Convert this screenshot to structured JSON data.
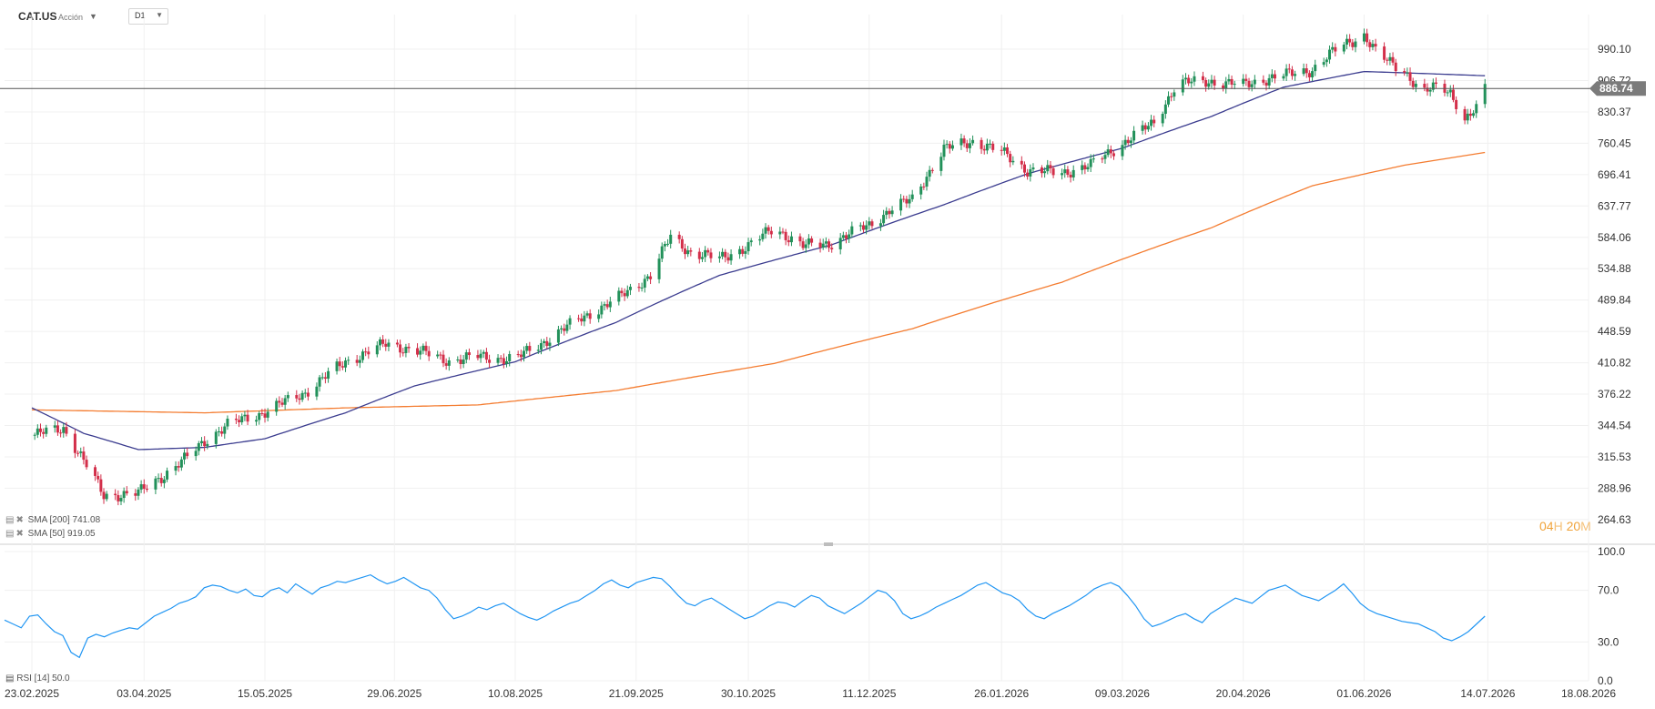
{
  "header": {
    "symbol": "CAT.US",
    "asset_type": "Acción",
    "timeframe": "D1"
  },
  "indicators": {
    "sma_slow": {
      "label": "SMA [200] 741.08",
      "color": "#f47c30"
    },
    "sma_fast": {
      "label": "SMA [50] 919.05",
      "color": "#3b3c8f"
    },
    "rsi": {
      "label": "RSI [14] 50.0",
      "color": "#2196f3"
    }
  },
  "countdown": {
    "hours": "04",
    "h_unit": "H",
    "minutes": "20",
    "m_unit": "M"
  },
  "colors": {
    "up": "#22915a",
    "down": "#d32f4a",
    "price_line": "#555555",
    "price_tag_bg": "#7b7b7b"
  },
  "chart_data": [
    {
      "type": "candlestick",
      "title": "CAT.US",
      "timeframe": "D1",
      "current_price": 886.74,
      "current_price_label": "886.74",
      "y_axis_ticks": [
        "990.10",
        "906.72",
        "830.37",
        "760.45",
        "696.41",
        "637.77",
        "584.06",
        "534.88",
        "489.84",
        "448.59",
        "410.82",
        "376.22",
        "344.54",
        "315.53",
        "288.96",
        "264.63"
      ],
      "x_axis_ticks": [
        "23.02.2025",
        "03.04.2025",
        "15.05.2025",
        "29.06.2025",
        "10.08.2025",
        "21.09.2025",
        "30.10.2025",
        "11.12.2025",
        "26.01.2026",
        "09.03.2026",
        "20.04.2026",
        "01.06.2026",
        "14.07.2026",
        "18.08.2026"
      ],
      "y_scale": "log",
      "ylim": [
        252,
        1080
      ],
      "price_path": [
        [
          "2025-02-23",
          335
        ],
        [
          "2025-03-06",
          342
        ],
        [
          "2025-03-13",
          312
        ],
        [
          "2025-03-20",
          283
        ],
        [
          "2025-04-01",
          285
        ],
        [
          "2025-04-10",
          300
        ],
        [
          "2025-04-18",
          315
        ],
        [
          "2025-04-24",
          330
        ],
        [
          "2025-05-02",
          345
        ],
        [
          "2025-05-15",
          358
        ],
        [
          "2025-05-29",
          378
        ],
        [
          "2025-06-12",
          412
        ],
        [
          "2025-06-26",
          433
        ],
        [
          "2025-07-06",
          426
        ],
        [
          "2025-07-18",
          413
        ],
        [
          "2025-07-28",
          418
        ],
        [
          "2025-08-10",
          415
        ],
        [
          "2025-08-22",
          440
        ],
        [
          "2025-09-02",
          466
        ],
        [
          "2025-09-14",
          490
        ],
        [
          "2025-09-26",
          525
        ],
        [
          "2025-10-03",
          585
        ],
        [
          "2025-10-10",
          560
        ],
        [
          "2025-10-20",
          550
        ],
        [
          "2025-10-30",
          570
        ],
        [
          "2025-11-08",
          600
        ],
        [
          "2025-11-18",
          570
        ],
        [
          "2025-11-28",
          575
        ],
        [
          "2025-12-11",
          605
        ],
        [
          "2025-12-18",
          630
        ],
        [
          "2025-12-26",
          650
        ],
        [
          "2026-01-06",
          748
        ],
        [
          "2026-01-16",
          765
        ],
        [
          "2026-01-26",
          742
        ],
        [
          "2026-02-04",
          705
        ],
        [
          "2026-02-16",
          700
        ],
        [
          "2026-02-26",
          715
        ],
        [
          "2026-03-09",
          760
        ],
        [
          "2026-03-20",
          805
        ],
        [
          "2026-03-28",
          900
        ],
        [
          "2026-04-09",
          905
        ],
        [
          "2026-04-20",
          895
        ],
        [
          "2026-04-27",
          910
        ],
        [
          "2026-05-04",
          920
        ],
        [
          "2026-05-14",
          935
        ],
        [
          "2026-05-24",
          1000
        ],
        [
          "2026-06-01",
          1030
        ],
        [
          "2026-06-06",
          970
        ],
        [
          "2026-06-15",
          935
        ],
        [
          "2026-06-21",
          872
        ],
        [
          "2026-06-27",
          895
        ],
        [
          "2026-07-01",
          880
        ],
        [
          "2026-07-06",
          810
        ],
        [
          "2026-07-10",
          835
        ],
        [
          "2026-07-13",
          886.74
        ]
      ],
      "sma_50": [
        [
          "2025-02-23",
          362
        ],
        [
          "2025-03-13",
          337
        ],
        [
          "2025-04-01",
          322
        ],
        [
          "2025-04-24",
          324
        ],
        [
          "2025-05-15",
          332
        ],
        [
          "2025-06-12",
          357
        ],
        [
          "2025-07-06",
          385
        ],
        [
          "2025-08-10",
          412
        ],
        [
          "2025-09-14",
          460
        ],
        [
          "2025-10-20",
          525
        ],
        [
          "2025-11-28",
          572
        ],
        [
          "2026-01-06",
          640
        ],
        [
          "2026-02-04",
          698
        ],
        [
          "2026-03-09",
          750
        ],
        [
          "2026-04-09",
          820
        ],
        [
          "2026-05-04",
          890
        ],
        [
          "2026-06-01",
          930
        ],
        [
          "2026-06-21",
          925
        ],
        [
          "2026-07-13",
          919.05
        ]
      ],
      "sma_200": [
        [
          "2025-02-23",
          360
        ],
        [
          "2025-04-24",
          357
        ],
        [
          "2025-06-12",
          362
        ],
        [
          "2025-07-28",
          365
        ],
        [
          "2025-09-14",
          380
        ],
        [
          "2025-11-08",
          410
        ],
        [
          "2025-12-26",
          452
        ],
        [
          "2026-02-16",
          515
        ],
        [
          "2026-04-09",
          600
        ],
        [
          "2026-05-14",
          675
        ],
        [
          "2026-06-15",
          715
        ],
        [
          "2026-07-13",
          741.08
        ]
      ]
    },
    {
      "type": "line",
      "title": "RSI [14]",
      "y_axis_ticks": [
        "100.0",
        "70.0",
        "30.0",
        "0.0"
      ],
      "ylim": [
        0,
        100
      ],
      "values": [
        47,
        44,
        41,
        50,
        51,
        44,
        38,
        35,
        22,
        18,
        33,
        36,
        34,
        37,
        39,
        41,
        40,
        45,
        50,
        53,
        56,
        60,
        62,
        65,
        72,
        74,
        73,
        70,
        68,
        71,
        66,
        65,
        70,
        72,
        68,
        75,
        71,
        67,
        72,
        74,
        77,
        76,
        78,
        80,
        82,
        78,
        75,
        77,
        80,
        76,
        72,
        70,
        64,
        55,
        48,
        50,
        53,
        57,
        55,
        58,
        60,
        56,
        52,
        49,
        47,
        50,
        54,
        57,
        60,
        62,
        66,
        70,
        75,
        78,
        74,
        72,
        76,
        78,
        80,
        79,
        73,
        66,
        60,
        58,
        62,
        64,
        60,
        56,
        52,
        48,
        50,
        54,
        58,
        61,
        60,
        57,
        62,
        66,
        64,
        58,
        55,
        52,
        56,
        60,
        65,
        70,
        68,
        62,
        52,
        48,
        50,
        53,
        57,
        60,
        63,
        66,
        70,
        74,
        76,
        72,
        68,
        66,
        62,
        55,
        50,
        48,
        52,
        55,
        58,
        62,
        66,
        71,
        74,
        76,
        73,
        66,
        58,
        48,
        42,
        44,
        47,
        50,
        52,
        48,
        45,
        52,
        56,
        60,
        64,
        62,
        60,
        65,
        70,
        72,
        74,
        70,
        66,
        64,
        62,
        66,
        70,
        75,
        68,
        60,
        55,
        52,
        50,
        48,
        46,
        45,
        44,
        41,
        38,
        33,
        31,
        34,
        38,
        44,
        50
      ]
    }
  ]
}
